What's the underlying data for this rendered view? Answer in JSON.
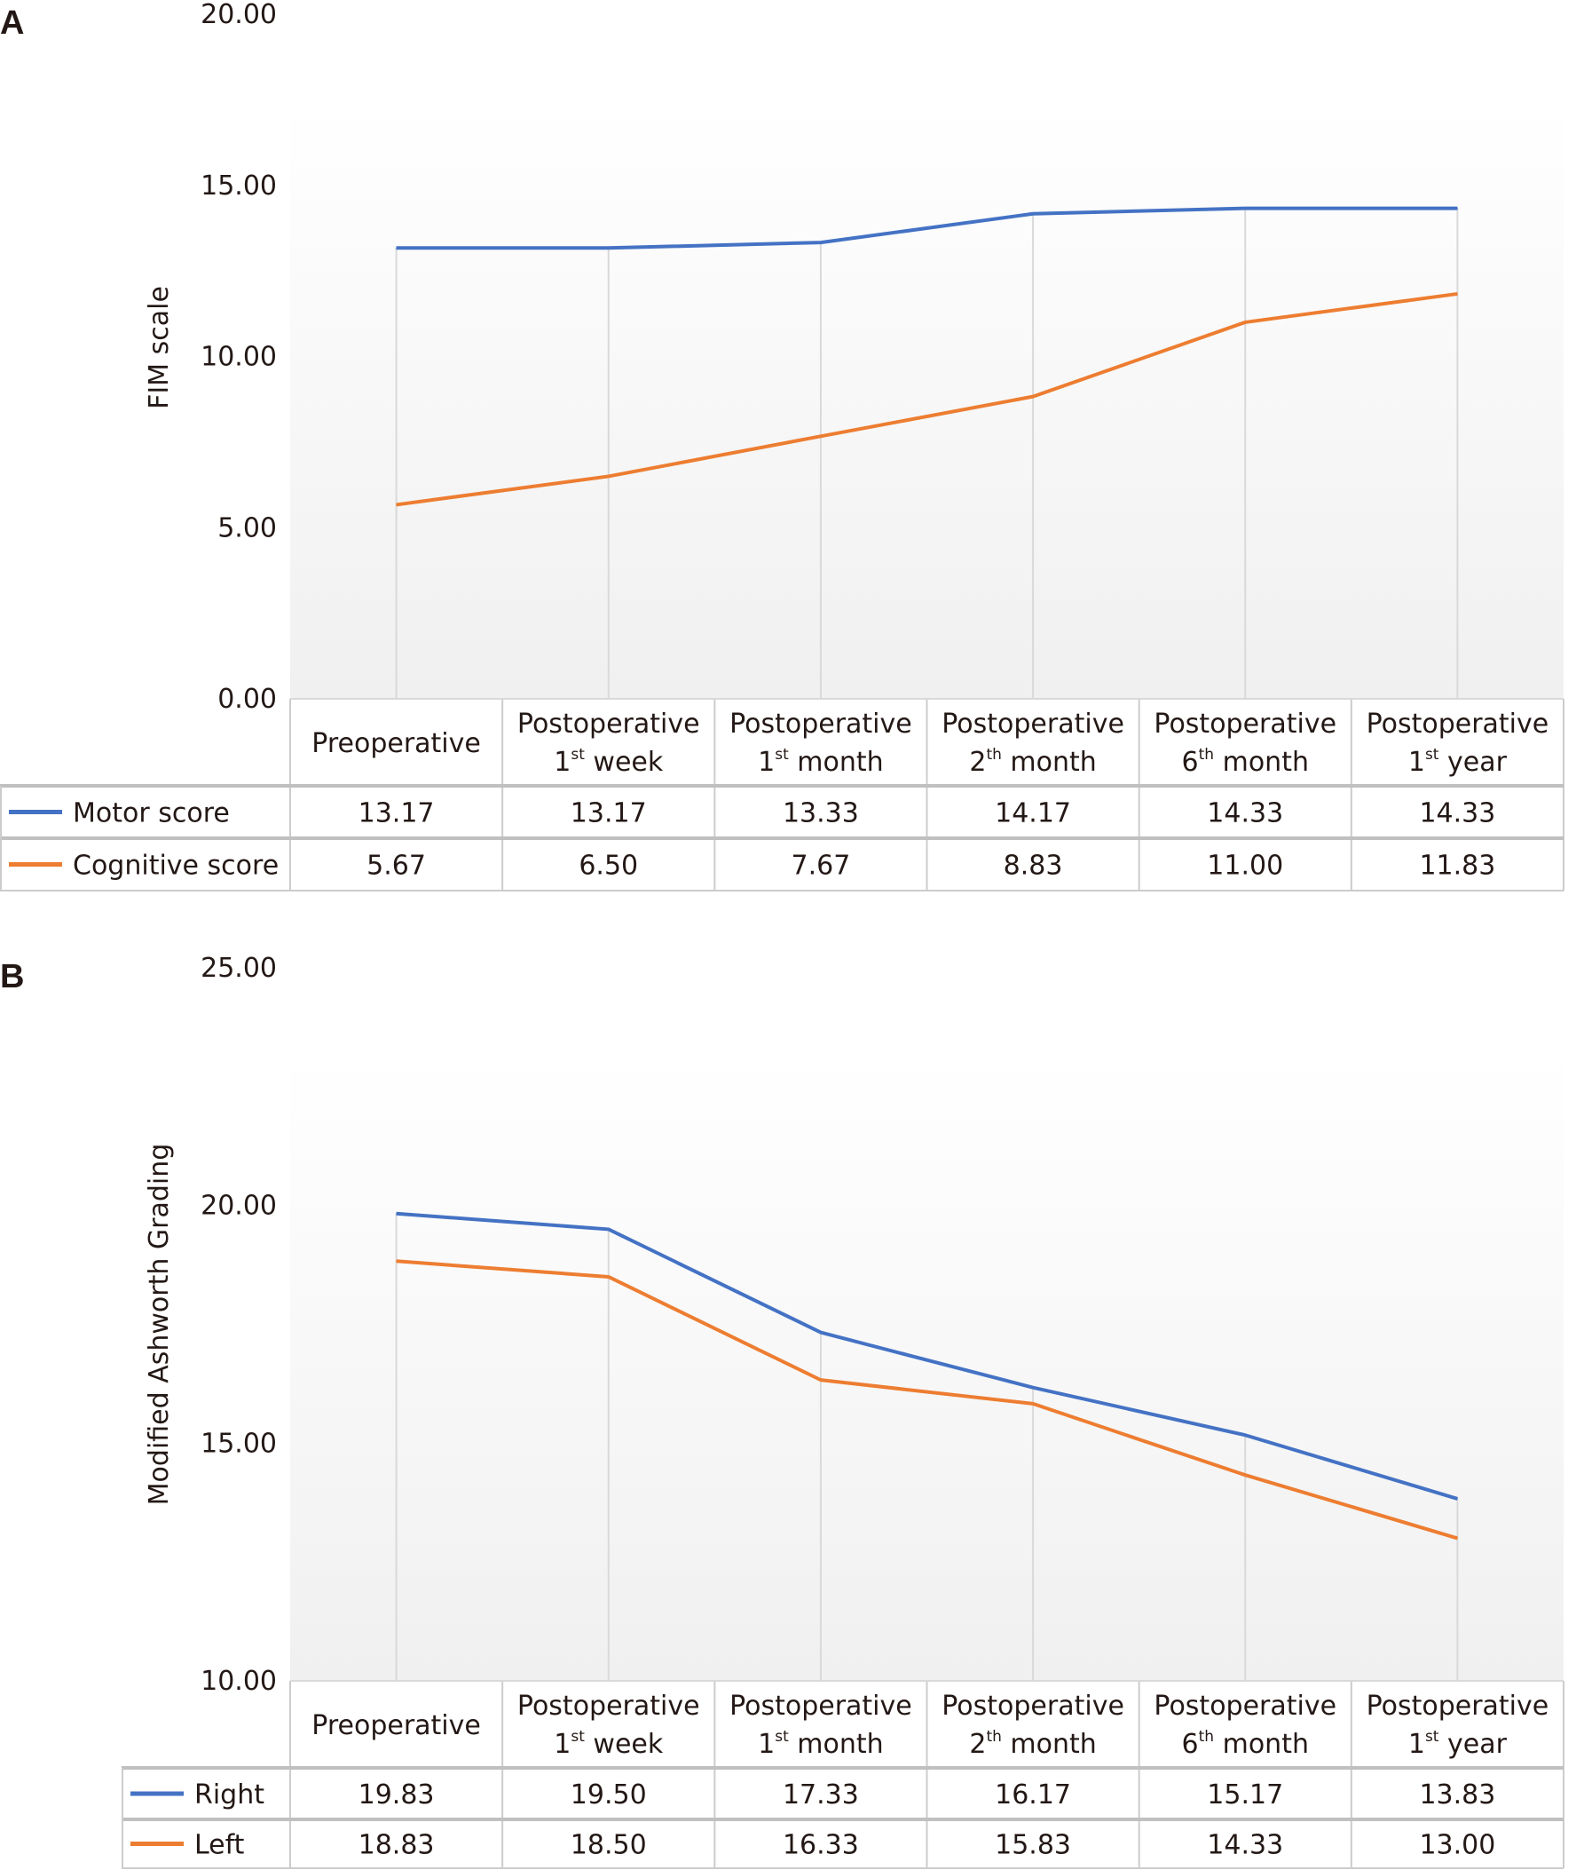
{
  "chart_data": [
    {
      "panel_label": "A",
      "type": "line",
      "ylabel": "FIM scale",
      "ylim": [
        0,
        20
      ],
      "yticks": [
        "0.00",
        "5.00",
        "10.00",
        "15.00",
        "20.00"
      ],
      "categories": [
        {
          "line1": "Preoperative",
          "num": "",
          "sup": "",
          "rest": ""
        },
        {
          "line1": "Postoperative",
          "num": "1",
          "sup": "st",
          "rest": " week"
        },
        {
          "line1": "Postoperative",
          "num": "1",
          "sup": "st",
          "rest": " month"
        },
        {
          "line1": "Postoperative",
          "num": "2",
          "sup": "th",
          "rest": " month"
        },
        {
          "line1": "Postoperative",
          "num": "6",
          "sup": "th",
          "rest": " month"
        },
        {
          "line1": "Postoperative",
          "num": "1",
          "sup": "st",
          "rest": " year"
        }
      ],
      "series": [
        {
          "name": "Motor score",
          "color": "#4472c4",
          "values": [
            13.17,
            13.17,
            13.33,
            14.17,
            14.33,
            14.33
          ],
          "labels": [
            "13.17",
            "13.17",
            "13.33",
            "14.17",
            "14.33",
            "14.33"
          ]
        },
        {
          "name": "Cognitive score",
          "color": "#ed7d31",
          "values": [
            5.67,
            6.5,
            7.67,
            8.83,
            11.0,
            11.83
          ],
          "labels": [
            "5.67",
            "6.50",
            "7.67",
            "8.83",
            "11.00",
            "11.83"
          ]
        }
      ],
      "grid": "vertical drop lines at categories",
      "legend": "data table below chart"
    },
    {
      "panel_label": "B",
      "type": "line",
      "ylabel": "Modified Ashworth Grading",
      "ylim": [
        10,
        25
      ],
      "yticks": [
        "10.00",
        "15.00",
        "20.00",
        "25.00"
      ],
      "categories": [
        {
          "line1": "Preoperative",
          "num": "",
          "sup": "",
          "rest": ""
        },
        {
          "line1": "Postoperative",
          "num": "1",
          "sup": "st",
          "rest": " week"
        },
        {
          "line1": "Postoperative",
          "num": "1",
          "sup": "st",
          "rest": " month"
        },
        {
          "line1": "Postoperative",
          "num": "2",
          "sup": "th",
          "rest": " month"
        },
        {
          "line1": "Postoperative",
          "num": "6",
          "sup": "th",
          "rest": " month"
        },
        {
          "line1": "Postoperative",
          "num": "1",
          "sup": "st",
          "rest": " year"
        }
      ],
      "series": [
        {
          "name": "Right",
          "color": "#4472c4",
          "values": [
            19.83,
            19.5,
            17.33,
            16.17,
            15.17,
            13.83
          ],
          "labels": [
            "19.83",
            "19.50",
            "17.33",
            "16.17",
            "15.17",
            "13.83"
          ]
        },
        {
          "name": "Left",
          "color": "#ed7d31",
          "values": [
            18.83,
            18.5,
            16.33,
            15.83,
            14.33,
            13.0
          ],
          "labels": [
            "18.83",
            "18.50",
            "16.33",
            "15.83",
            "14.33",
            "13.00"
          ]
        }
      ],
      "grid": "vertical drop lines at categories",
      "legend": "data table below chart"
    }
  ]
}
